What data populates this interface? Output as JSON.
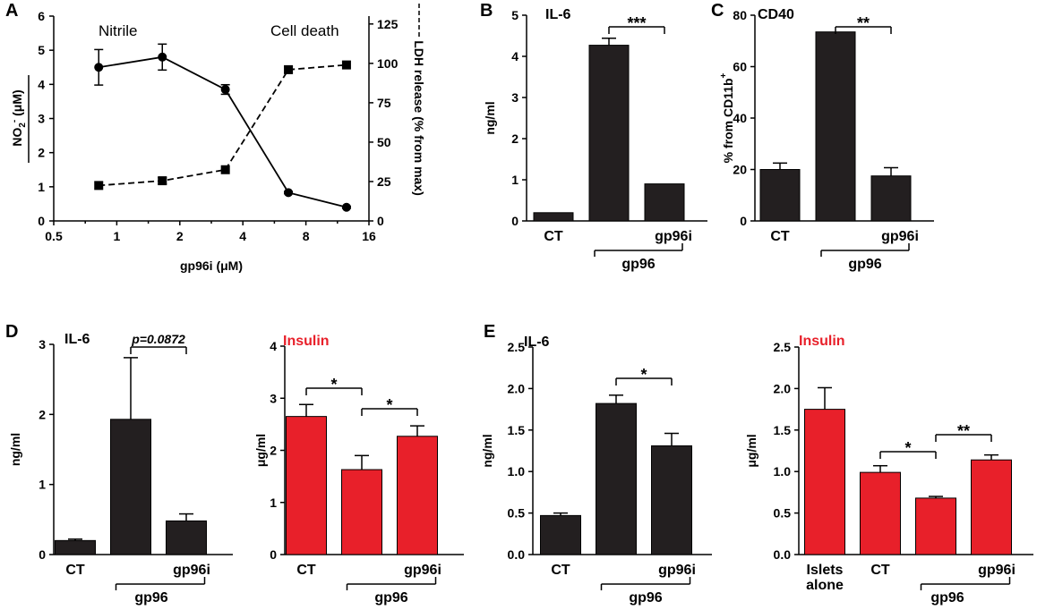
{
  "chart_data": [
    {
      "id": "A",
      "type": "line",
      "panel": "A",
      "xlabel": "gp96i (μM)",
      "xscale": "log2",
      "xlim": [
        0.5,
        16
      ],
      "xticks": [
        0.5,
        1,
        2,
        4,
        8,
        16
      ],
      "xticklabels": [
        "0.5",
        "1",
        "2",
        "4",
        "8",
        "16"
      ],
      "ylabel_left": "NO2- (μM)",
      "ylim_left": [
        0,
        6
      ],
      "yticks_left": [
        0,
        1,
        2,
        3,
        4,
        5,
        6
      ],
      "ylabel_right": "LDH release (% from max)",
      "ylim_right": [
        0,
        130
      ],
      "yticks_right": [
        0,
        25,
        50,
        75,
        100,
        125
      ],
      "annotations": [
        "Nitrile",
        "Cell death"
      ],
      "series": [
        {
          "name": "Nitrile",
          "axis": "left",
          "style": "solid",
          "marker": "circle",
          "x": [
            0.82,
            1.65,
            3.3,
            6.6,
            12.5
          ],
          "y": [
            4.5,
            4.8,
            3.85,
            0.83,
            0.4
          ],
          "err": [
            0.52,
            0.38,
            0.14,
            0.03,
            0.03
          ]
        },
        {
          "name": "Cell death",
          "axis": "right",
          "style": "dashed",
          "marker": "square",
          "x": [
            0.82,
            1.65,
            3.3,
            6.6,
            12.5
          ],
          "y": [
            22.5,
            25.5,
            32.5,
            96,
            99
          ],
          "err": [
            0,
            2,
            0,
            2,
            0
          ]
        }
      ]
    },
    {
      "id": "B",
      "type": "bar",
      "panel": "B",
      "title": "IL-6",
      "title_color": "#000000",
      "ylabel": "ng/ml",
      "ylim": [
        0,
        5
      ],
      "yticks": [
        0,
        1,
        2,
        3,
        4,
        5
      ],
      "categories": [
        "CT",
        "",
        "gp96i"
      ],
      "group_label": "gp96",
      "values": [
        0.2,
        4.27,
        0.9
      ],
      "errors": [
        0,
        0.17,
        0
      ],
      "bar_color": "#231f20",
      "significance": [
        {
          "from": 1,
          "to": 2,
          "label": "***"
        }
      ]
    },
    {
      "id": "C",
      "type": "bar",
      "panel": "C",
      "title": "CD40",
      "title_color": "#000000",
      "ylabel": "% from CD11b+",
      "ylim": [
        0,
        80
      ],
      "yticks": [
        0,
        20,
        40,
        60,
        80
      ],
      "categories": [
        "CT",
        "",
        "gp96i"
      ],
      "group_label": "gp96",
      "values": [
        20,
        73.5,
        17.5
      ],
      "errors": [
        2.5,
        0,
        3.2
      ],
      "bar_color": "#231f20",
      "significance": [
        {
          "from": 1,
          "to": 2,
          "label": "**"
        }
      ]
    },
    {
      "id": "D1",
      "type": "bar",
      "panel": "D",
      "title": "IL-6",
      "title_color": "#000000",
      "ylabel": "ng/ml",
      "ylim": [
        0,
        3
      ],
      "yticks": [
        0,
        1,
        2,
        3
      ],
      "categories": [
        "CT",
        "",
        "gp96i"
      ],
      "group_label": "gp96",
      "values": [
        0.2,
        1.93,
        0.48
      ],
      "errors": [
        0.02,
        0.88,
        0.1
      ],
      "bar_color": "#231f20",
      "significance": [
        {
          "from": 1,
          "to": 2,
          "label": "p=0.0872",
          "italic": true
        }
      ]
    },
    {
      "id": "D2",
      "type": "bar",
      "title": "Insulin",
      "title_color": "#e8202a",
      "ylabel": "μg/ml",
      "ylim": [
        0,
        4
      ],
      "yticks": [
        0,
        1,
        2,
        3,
        4
      ],
      "categories": [
        "CT",
        "",
        "gp96i"
      ],
      "group_label": "gp96",
      "values": [
        2.65,
        1.63,
        2.27
      ],
      "errors": [
        0.23,
        0.27,
        0.2
      ],
      "bar_color": "#e8202a",
      "significance": [
        {
          "from": 0,
          "to": 1,
          "label": "*"
        },
        {
          "from": 1,
          "to": 2,
          "label": "*"
        }
      ]
    },
    {
      "id": "E1",
      "type": "bar",
      "panel": "E",
      "title": "IL-6",
      "title_color": "#000000",
      "ylabel": "ng/ml",
      "ylim": [
        0,
        2.5
      ],
      "yticks": [
        0,
        0.5,
        1,
        1.5,
        2,
        2.5
      ],
      "yticklabels": [
        "0.0",
        "0.5",
        "1.0",
        "1.5",
        "2.0",
        "2.5"
      ],
      "categories": [
        "CT",
        "",
        "gp96i"
      ],
      "group_label": "gp96",
      "values": [
        0.47,
        1.82,
        1.31
      ],
      "errors": [
        0.03,
        0.1,
        0.15
      ],
      "bar_color": "#231f20",
      "significance": [
        {
          "from": 1,
          "to": 2,
          "label": "*"
        }
      ]
    },
    {
      "id": "E2",
      "type": "bar",
      "title": "Insulin",
      "title_color": "#e8202a",
      "ylabel": "μg/ml",
      "ylim": [
        0,
        2.5
      ],
      "yticks": [
        0,
        0.5,
        1,
        1.5,
        2,
        2.5
      ],
      "yticklabels": [
        "0.0",
        "0.5",
        "1.0",
        "1.5",
        "2.0",
        "2.5"
      ],
      "categories": [
        "Islets alone",
        "CT",
        "",
        "gp96i"
      ],
      "group_label": "gp96",
      "values": [
        1.75,
        0.99,
        0.68,
        1.14
      ],
      "errors": [
        0.26,
        0.08,
        0.02,
        0.06
      ],
      "bar_color": "#e8202a",
      "significance": [
        {
          "from": 1,
          "to": 2,
          "label": "*"
        },
        {
          "from": 2,
          "to": 3,
          "label": "**"
        }
      ]
    }
  ]
}
